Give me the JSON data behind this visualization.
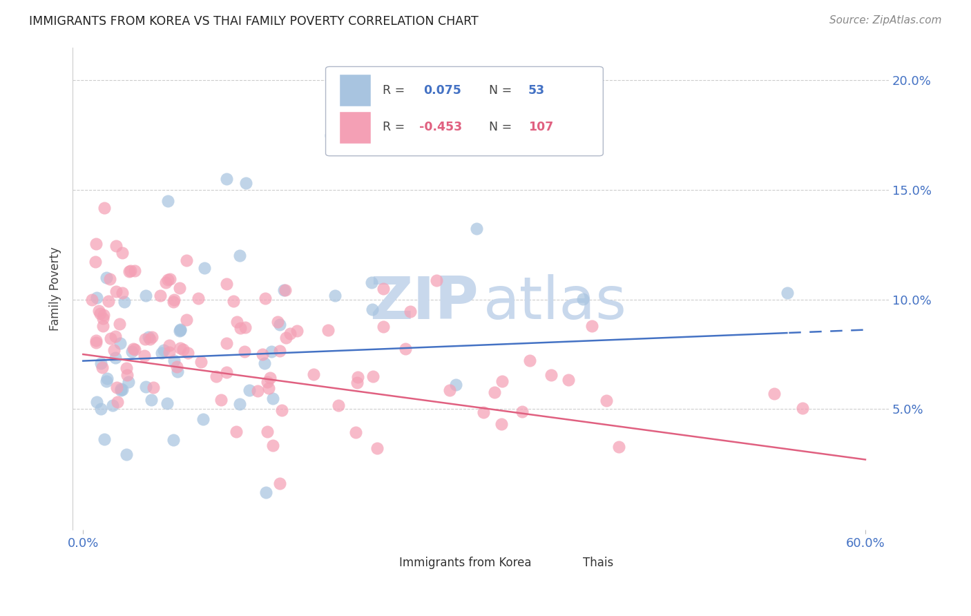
{
  "title": "IMMIGRANTS FROM KOREA VS THAI FAMILY POVERTY CORRELATION CHART",
  "source": "Source: ZipAtlas.com",
  "ylabel": "Family Poverty",
  "korea_R": 0.075,
  "korea_N": 53,
  "thai_R": -0.453,
  "thai_N": 107,
  "korea_color": "#a8c4e0",
  "thai_color": "#f4a0b5",
  "korea_line_color": "#4472c4",
  "thai_line_color": "#e06080",
  "watermark_zip_color": "#c8d8ec",
  "watermark_atlas_color": "#c8d8ec",
  "grid_color": "#cccccc",
  "background_color": "#ffffff",
  "xlim": [
    0.0,
    0.6
  ],
  "ylim": [
    0.0,
    0.21
  ],
  "yticks": [
    0.05,
    0.1,
    0.15,
    0.2
  ],
  "ytick_labels": [
    "5.0%",
    "10.0%",
    "15.0%",
    "20.0%"
  ],
  "xtick_left": "0.0%",
  "xtick_right": "60.0%"
}
